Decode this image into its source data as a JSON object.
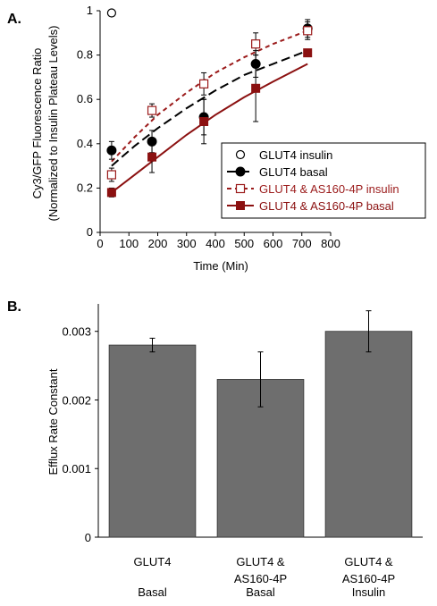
{
  "chart_data": [
    {
      "panel_label": "A.",
      "type": "scatter",
      "xlabel": "Time (Min)",
      "ylabel_line1": "Cy3/GFP Fluorescence Ratio",
      "ylabel_line2": "(Normalized to Insulin Plateau Levels)",
      "xlim": [
        0,
        800
      ],
      "ylim": [
        0,
        1
      ],
      "xticks": [
        "0",
        "100",
        "200",
        "300",
        "400",
        "500",
        "600",
        "700",
        "800"
      ],
      "yticks": [
        "0",
        "0.2",
        "0.4",
        "0.6",
        "0.8",
        "1"
      ],
      "legend_position": "bottom-right",
      "series": [
        {
          "name": "GLUT4 insulin",
          "marker": "open-circle",
          "color": "#000000",
          "line": "none",
          "points": [
            {
              "x": 40,
              "y": 0.99,
              "err": 0
            }
          ]
        },
        {
          "name": "GLUT4 basal",
          "marker": "filled-circle",
          "color": "#000000",
          "line": "long-dash",
          "points": [
            {
              "x": 40,
              "y": 0.37,
              "err": 0.04
            },
            {
              "x": 180,
              "y": 0.41,
              "err": 0.05
            },
            {
              "x": 360,
              "y": 0.52,
              "err": 0.08
            },
            {
              "x": 540,
              "y": 0.76,
              "err": 0.06
            },
            {
              "x": 720,
              "y": 0.92,
              "err": 0.04
            }
          ],
          "fit": [
            [
              40,
              0.3
            ],
            [
              120,
              0.39
            ],
            [
              200,
              0.47
            ],
            [
              300,
              0.56
            ],
            [
              400,
              0.64
            ],
            [
              500,
              0.71
            ],
            [
              600,
              0.76
            ],
            [
              720,
              0.82
            ]
          ]
        },
        {
          "name": "GLUT4 & AS160-4P insulin",
          "marker": "open-square",
          "color": "#9b1b1b",
          "line": "short-dash",
          "points": [
            {
              "x": 40,
              "y": 0.26,
              "err": 0.03
            },
            {
              "x": 180,
              "y": 0.55,
              "err": 0.03
            },
            {
              "x": 360,
              "y": 0.67,
              "err": 0.05
            },
            {
              "x": 540,
              "y": 0.85,
              "err": 0.05
            },
            {
              "x": 720,
              "y": 0.91,
              "err": 0.04
            }
          ],
          "fit": [
            [
              40,
              0.32
            ],
            [
              120,
              0.43
            ],
            [
              200,
              0.53
            ],
            [
              300,
              0.63
            ],
            [
              400,
              0.72
            ],
            [
              500,
              0.79
            ],
            [
              600,
              0.85
            ],
            [
              720,
              0.91
            ]
          ]
        },
        {
          "name": "GLUT4 & AS160-4P basal",
          "marker": "filled-square",
          "color": "#8b1010",
          "line": "solid",
          "points": [
            {
              "x": 40,
              "y": 0.18,
              "err": 0.02
            },
            {
              "x": 180,
              "y": 0.34,
              "err": 0.07
            },
            {
              "x": 360,
              "y": 0.5,
              "err": 0.1
            },
            {
              "x": 540,
              "y": 0.65,
              "err": 0.15
            },
            {
              "x": 720,
              "y": 0.81,
              "err": 0
            }
          ],
          "fit": [
            [
              40,
              0.18
            ],
            [
              120,
              0.26
            ],
            [
              200,
              0.34
            ],
            [
              300,
              0.44
            ],
            [
              400,
              0.53
            ],
            [
              500,
              0.61
            ],
            [
              600,
              0.68
            ],
            [
              720,
              0.76
            ]
          ]
        }
      ]
    },
    {
      "panel_label": "B.",
      "type": "bar",
      "ylabel": "Efflux Rate Constant",
      "ylim": [
        0,
        0.0034
      ],
      "yticks": [
        {
          "value": 0,
          "label": "0"
        },
        {
          "value": 0.001,
          "label": "0.001"
        },
        {
          "value": 0.002,
          "label": "0.002"
        },
        {
          "value": 0.003,
          "label": "0.003"
        }
      ],
      "bar_color": "#6e6e6e",
      "categories": [
        {
          "lines": [
            "GLUT4",
            "",
            "Basal"
          ]
        },
        {
          "lines": [
            "GLUT4 &",
            "AS160-4P",
            "Basal"
          ]
        },
        {
          "lines": [
            "GLUT4 &",
            "AS160-4P",
            "Insulin"
          ]
        }
      ],
      "values": [
        0.0028,
        0.0023,
        0.003
      ],
      "errors": [
        0.0001,
        0.0004,
        0.0003
      ]
    }
  ]
}
